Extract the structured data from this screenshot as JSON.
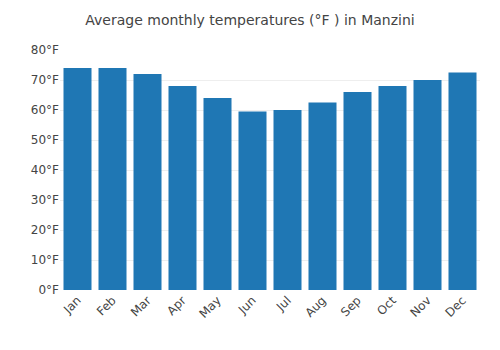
{
  "chart_data": {
    "type": "bar",
    "title": "Average monthly temperatures (°F ) in Manzini",
    "categories": [
      "Jan",
      "Feb",
      "Mar",
      "Apr",
      "May",
      "Jun",
      "Jul",
      "Aug",
      "Sep",
      "Oct",
      "Nov",
      "Dec"
    ],
    "values": [
      74,
      74,
      72,
      68,
      64,
      59.5,
      60,
      62.5,
      66,
      68,
      70,
      72.5
    ],
    "ylim": [
      0,
      80
    ],
    "yticks": [
      {
        "value": 0,
        "label": "0°F"
      },
      {
        "value": 10,
        "label": "10°F"
      },
      {
        "value": 20,
        "label": "20°F"
      },
      {
        "value": 30,
        "label": "30°F"
      },
      {
        "value": 40,
        "label": "40°F"
      },
      {
        "value": 50,
        "label": "50°F"
      },
      {
        "value": 60,
        "label": "60°F"
      },
      {
        "value": 70,
        "label": "70°F"
      },
      {
        "value": 80,
        "label": "80°F"
      }
    ],
    "grid": true
  }
}
